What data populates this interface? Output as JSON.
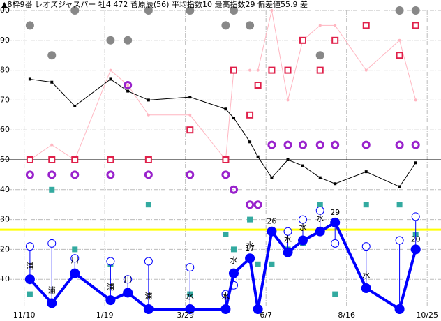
{
  "chart_data": {
    "type": "line",
    "title": "▲8枠9番 レオズジャスパー 牡4 472 菅原辰(56) 平均指数10 最高指数29 偏差値55.9 差",
    "x": [
      5,
      24,
      44,
      75,
      90,
      108,
      144,
      175,
      182,
      196,
      203,
      215,
      229,
      242,
      257,
      270,
      297,
      326,
      340
    ],
    "xlim": [
      -21,
      362
    ],
    "xticks": [
      {
        "value": 0,
        "label": "11/10"
      },
      {
        "value": 70,
        "label": "1/19"
      },
      {
        "value": 140,
        "label": "3/29"
      },
      {
        "value": 210,
        "label": "6/7"
      },
      {
        "value": 280,
        "label": "8/16"
      },
      {
        "value": 350,
        "label": "10/25"
      }
    ],
    "ylim": [
      0,
      100
    ],
    "yticks": [
      10,
      20,
      30,
      40,
      50,
      60,
      70,
      80,
      90,
      100
    ],
    "grid": true,
    "hlines": [
      {
        "value": 50,
        "color": "#000000"
      },
      {
        "value": 26.6,
        "color": "#ffff00"
      }
    ],
    "series": [
      {
        "style": "pink-line",
        "color": "#ffb6c1",
        "values": [
          50,
          55,
          50,
          80,
          75,
          65,
          65,
          50,
          80,
          80,
          80,
          100,
          70,
          90,
          95,
          95,
          80,
          90,
          70
        ]
      },
      {
        "style": "black-line",
        "color": "#000000",
        "values": [
          77,
          76,
          68,
          77,
          73,
          70,
          71,
          67,
          64,
          56,
          51,
          44,
          50,
          48,
          44,
          42,
          46,
          41,
          49
        ]
      },
      {
        "style": "dot",
        "color": "#888888",
        "values": [
          95,
          85,
          100,
          90,
          90,
          100,
          100,
          95,
          100,
          95,
          null,
          null,
          null,
          null,
          85,
          null,
          null,
          100,
          100
        ]
      },
      {
        "style": "square-open",
        "color": "#e0204a",
        "values": [
          50,
          50,
          50,
          50,
          null,
          50,
          60,
          50,
          80,
          65,
          75,
          80,
          80,
          90,
          80,
          90,
          95,
          85,
          95
        ]
      },
      {
        "style": "ring",
        "color": "#9922cc",
        "values": [
          45,
          45,
          45,
          45,
          75,
          45,
          45,
          45,
          40,
          35,
          35,
          55,
          55,
          55,
          55,
          55,
          55,
          55,
          55
        ]
      },
      {
        "style": "square",
        "color": "#33aaa0",
        "values": [
          5,
          40,
          20,
          15,
          10,
          35,
          5,
          25,
          20,
          30,
          15,
          15,
          20,
          22,
          35,
          5,
          35,
          35,
          25
        ]
      },
      {
        "style": "open-circle",
        "color": "#0000ff",
        "values": [
          21,
          22,
          17,
          16,
          10,
          16,
          14,
          5,
          8,
          null,
          null,
          26,
          26,
          30,
          33,
          22,
          21,
          23,
          31
        ]
      },
      {
        "style": "main",
        "color": "#0000ff",
        "values": [
          10,
          2,
          12,
          3,
          5.5,
          0,
          0,
          0,
          12,
          17,
          0,
          26,
          19,
          23,
          26,
          29,
          7,
          0,
          20
        ],
        "value_labels": [
          null,
          null,
          null,
          null,
          null,
          null,
          null,
          null,
          null,
          "17",
          null,
          "26",
          null,
          null,
          null,
          "29",
          null,
          null,
          "20"
        ],
        "annotations": [
          "浦",
          "浦",
          "川",
          "浦",
          "川",
          "浦",
          "水",
          "水",
          "水",
          "水",
          null,
          null,
          "水",
          "水",
          "水",
          null,
          "水",
          null,
          null
        ]
      }
    ]
  }
}
